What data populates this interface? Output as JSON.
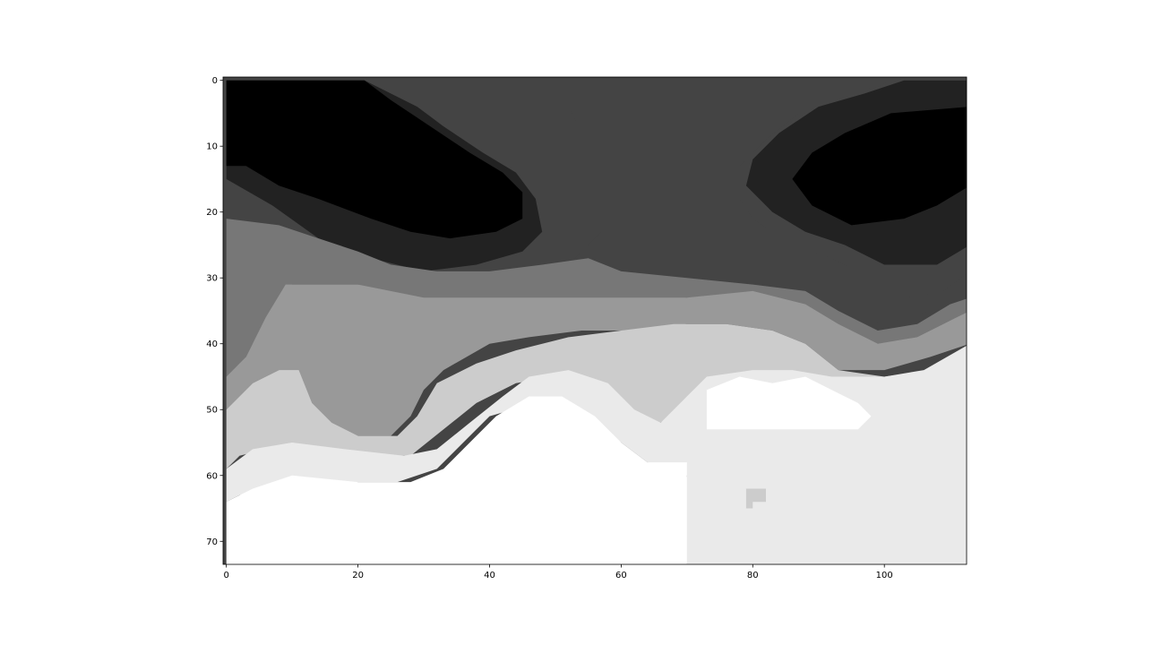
{
  "chart_data": {
    "type": "heatmap",
    "title": "",
    "xlabel": "",
    "ylabel": "",
    "colormap": "gray",
    "grid": false,
    "legend": "none",
    "x_range": [
      -0.5,
      112.5
    ],
    "y_range": [
      73.5,
      -0.5
    ],
    "x_ticks": [
      0,
      20,
      40,
      60,
      80,
      100
    ],
    "x_tick_labels": [
      "0",
      "20",
      "40",
      "60",
      "80",
      "100"
    ],
    "y_ticks": [
      0,
      10,
      20,
      30,
      40,
      50,
      60,
      70
    ],
    "y_tick_labels": [
      "0",
      "10",
      "20",
      "30",
      "40",
      "50",
      "60",
      "70"
    ],
    "levels": [
      {
        "level": 0,
        "color": "#000000"
      },
      {
        "level": 1,
        "color": "#222222"
      },
      {
        "level": 2,
        "color": "#444444"
      },
      {
        "level": 3,
        "color": "#777777"
      },
      {
        "level": 4,
        "color": "#999999"
      },
      {
        "level": 5,
        "color": "#cccccc"
      },
      {
        "level": 6,
        "color": "#eaeaea"
      },
      {
        "level": 7,
        "color": "#ffffff"
      }
    ],
    "regions": [
      {
        "level": 1,
        "points": [
          [
            0,
            0
          ],
          [
            21,
            0
          ],
          [
            29,
            4
          ],
          [
            33,
            7
          ],
          [
            39,
            11
          ],
          [
            44,
            14
          ],
          [
            47,
            18
          ],
          [
            48,
            23
          ],
          [
            45,
            26
          ],
          [
            38,
            28
          ],
          [
            30,
            29
          ],
          [
            22,
            27
          ],
          [
            14,
            24
          ],
          [
            7,
            19
          ],
          [
            0,
            15
          ]
        ]
      },
      {
        "level": 0,
        "points": [
          [
            0,
            0
          ],
          [
            21,
            0
          ],
          [
            25,
            3
          ],
          [
            31,
            7
          ],
          [
            37,
            11
          ],
          [
            42,
            14
          ],
          [
            45,
            17
          ],
          [
            45,
            21
          ],
          [
            41,
            23
          ],
          [
            34,
            24
          ],
          [
            28,
            23
          ],
          [
            22,
            21
          ],
          [
            14,
            18
          ],
          [
            8,
            16
          ],
          [
            3,
            13
          ],
          [
            0,
            13
          ]
        ]
      },
      {
        "level": 2,
        "points": [
          [
            50,
            0
          ],
          [
            101,
            0
          ],
          [
            99,
            1
          ],
          [
            93,
            2
          ],
          [
            87,
            5
          ],
          [
            82,
            9
          ],
          [
            78,
            13
          ],
          [
            78,
            18
          ],
          [
            80,
            21
          ],
          [
            86,
            25
          ],
          [
            92,
            27
          ],
          [
            98,
            30
          ],
          [
            104,
            33
          ],
          [
            109,
            32
          ],
          [
            113,
            29
          ],
          [
            113,
            33
          ],
          [
            107,
            35
          ],
          [
            100,
            37
          ],
          [
            94,
            36
          ],
          [
            88,
            33
          ],
          [
            80,
            31
          ],
          [
            70,
            31
          ],
          [
            60,
            30
          ],
          [
            51,
            29
          ],
          [
            57,
            23
          ],
          [
            56,
            17
          ],
          [
            55,
            10
          ],
          [
            52,
            4
          ]
        ]
      },
      {
        "level": 1,
        "points": [
          [
            113,
            0
          ],
          [
            113,
            25
          ],
          [
            108,
            28
          ],
          [
            100,
            28
          ],
          [
            94,
            25
          ],
          [
            88,
            23
          ],
          [
            83,
            20
          ],
          [
            79,
            16
          ],
          [
            80,
            12
          ],
          [
            84,
            8
          ],
          [
            90,
            4
          ],
          [
            97,
            2
          ],
          [
            103,
            0
          ]
        ]
      },
      {
        "level": 0,
        "points": [
          [
            113,
            4
          ],
          [
            113,
            16
          ],
          [
            108,
            19
          ],
          [
            103,
            21
          ],
          [
            95,
            22
          ],
          [
            89,
            19
          ],
          [
            86,
            15
          ],
          [
            89,
            11
          ],
          [
            94,
            8
          ],
          [
            101,
            5
          ]
        ]
      },
      {
        "level": 3,
        "points": [
          [
            0,
            21
          ],
          [
            8,
            22
          ],
          [
            14,
            24
          ],
          [
            20,
            26
          ],
          [
            25,
            28
          ],
          [
            32,
            29
          ],
          [
            40,
            29
          ],
          [
            48,
            28
          ],
          [
            55,
            27
          ],
          [
            60,
            29
          ],
          [
            70,
            30
          ],
          [
            80,
            31
          ],
          [
            88,
            32
          ],
          [
            93,
            35
          ],
          [
            99,
            38
          ],
          [
            105,
            37
          ],
          [
            110,
            34
          ],
          [
            113,
            33
          ],
          [
            113,
            37
          ],
          [
            107,
            40
          ],
          [
            100,
            42
          ],
          [
            94,
            41
          ],
          [
            88,
            38
          ],
          [
            80,
            35
          ],
          [
            70,
            33
          ],
          [
            60,
            34
          ],
          [
            50,
            35
          ],
          [
            40,
            36
          ],
          [
            30,
            34
          ],
          [
            20,
            31
          ],
          [
            10,
            31
          ],
          [
            7,
            36
          ],
          [
            4,
            40
          ],
          [
            2,
            44
          ],
          [
            0,
            45
          ]
        ]
      },
      {
        "level": 4,
        "points": [
          [
            0,
            45
          ],
          [
            3,
            42
          ],
          [
            6,
            36
          ],
          [
            9,
            31
          ],
          [
            20,
            31
          ],
          [
            30,
            33
          ],
          [
            40,
            33
          ],
          [
            50,
            33
          ],
          [
            60,
            33
          ],
          [
            70,
            33
          ],
          [
            80,
            32
          ],
          [
            88,
            34
          ],
          [
            93,
            37
          ],
          [
            99,
            40
          ],
          [
            105,
            39
          ],
          [
            111,
            36
          ],
          [
            113,
            35
          ],
          [
            113,
            40
          ],
          [
            107,
            42
          ],
          [
            100,
            44
          ],
          [
            93,
            44
          ],
          [
            88,
            40
          ],
          [
            83,
            38
          ],
          [
            76,
            37
          ],
          [
            70,
            37
          ],
          [
            62,
            38
          ],
          [
            54,
            38
          ],
          [
            46,
            39
          ],
          [
            40,
            40
          ],
          [
            33,
            44
          ],
          [
            30,
            47
          ],
          [
            28,
            51
          ],
          [
            25,
            54
          ],
          [
            18,
            54
          ],
          [
            14,
            52
          ],
          [
            11,
            47
          ],
          [
            8,
            44
          ],
          [
            4,
            46
          ],
          [
            0,
            50
          ]
        ]
      },
      {
        "level": 5,
        "points": [
          [
            0,
            50
          ],
          [
            4,
            46
          ],
          [
            8,
            44
          ],
          [
            11,
            44
          ],
          [
            13,
            49
          ],
          [
            16,
            52
          ],
          [
            20,
            54
          ],
          [
            26,
            54
          ],
          [
            29,
            51
          ],
          [
            32,
            46
          ],
          [
            38,
            43
          ],
          [
            44,
            41
          ],
          [
            52,
            39
          ],
          [
            60,
            38
          ],
          [
            68,
            37
          ],
          [
            76,
            37
          ],
          [
            83,
            38
          ],
          [
            88,
            40
          ],
          [
            93,
            44
          ],
          [
            100,
            45
          ],
          [
            107,
            44
          ],
          [
            113,
            41
          ],
          [
            113,
            45
          ],
          [
            106,
            46
          ],
          [
            100,
            46
          ],
          [
            94,
            45
          ],
          [
            88,
            45
          ],
          [
            82,
            46
          ],
          [
            76,
            46
          ],
          [
            70,
            49
          ],
          [
            66,
            52
          ],
          [
            60,
            52
          ],
          [
            56,
            48
          ],
          [
            50,
            45
          ],
          [
            44,
            46
          ],
          [
            38,
            49
          ],
          [
            33,
            53
          ],
          [
            28,
            57
          ],
          [
            20,
            57
          ],
          [
            12,
            56
          ],
          [
            6,
            56
          ],
          [
            2,
            57
          ],
          [
            0,
            59
          ]
        ]
      },
      {
        "level": 6,
        "points": [
          [
            0,
            59
          ],
          [
            4,
            56
          ],
          [
            10,
            55
          ],
          [
            18,
            56
          ],
          [
            27,
            57
          ],
          [
            32,
            56
          ],
          [
            37,
            52
          ],
          [
            42,
            48
          ],
          [
            46,
            45
          ],
          [
            52,
            44
          ],
          [
            58,
            46
          ],
          [
            62,
            50
          ],
          [
            66,
            52
          ],
          [
            70,
            48
          ],
          [
            73,
            45
          ],
          [
            80,
            44
          ],
          [
            86,
            44
          ],
          [
            92,
            45
          ],
          [
            100,
            45
          ],
          [
            106,
            44
          ],
          [
            113,
            40
          ],
          [
            113,
            73.5
          ],
          [
            70,
            73.5
          ],
          [
            69,
            68
          ],
          [
            70,
            60
          ],
          [
            64,
            58
          ],
          [
            60,
            55
          ],
          [
            56,
            52
          ],
          [
            52,
            50
          ],
          [
            47,
            49
          ],
          [
            40,
            51
          ],
          [
            36,
            55
          ],
          [
            32,
            59
          ],
          [
            26,
            61
          ],
          [
            20,
            61
          ],
          [
            10,
            61
          ],
          [
            6,
            62
          ],
          [
            2,
            63
          ],
          [
            0,
            64
          ]
        ]
      },
      {
        "level": 7,
        "points": [
          [
            0,
            64
          ],
          [
            4,
            62
          ],
          [
            10,
            60
          ],
          [
            20,
            61
          ],
          [
            28,
            61
          ],
          [
            33,
            59
          ],
          [
            37,
            55
          ],
          [
            41,
            51
          ],
          [
            46,
            48
          ],
          [
            51,
            48
          ],
          [
            56,
            51
          ],
          [
            60,
            55
          ],
          [
            64,
            58
          ],
          [
            70,
            58
          ],
          [
            70,
            73.5
          ],
          [
            0,
            73.5
          ]
        ]
      },
      {
        "level": 7,
        "points": [
          [
            73,
            47
          ],
          [
            78,
            45
          ],
          [
            83,
            46
          ],
          [
            88,
            45
          ],
          [
            92,
            47
          ],
          [
            96,
            49
          ],
          [
            98,
            51
          ],
          [
            96,
            53
          ],
          [
            90,
            53
          ],
          [
            84,
            53
          ],
          [
            78,
            53
          ],
          [
            73,
            53
          ]
        ]
      },
      {
        "level": 5,
        "points": [
          [
            79,
            62
          ],
          [
            82,
            62
          ],
          [
            82,
            64
          ],
          [
            80,
            64
          ],
          [
            80,
            65
          ],
          [
            79,
            65
          ]
        ]
      }
    ]
  }
}
